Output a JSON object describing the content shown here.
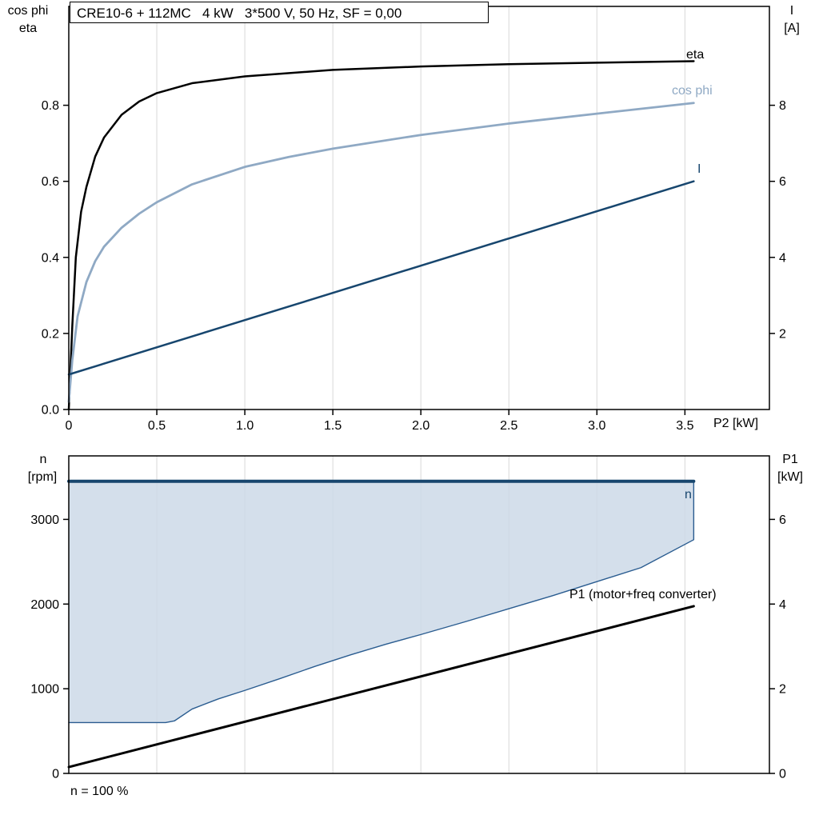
{
  "title": "CRE10-6 + 112MC   4 kW   3*500 V, 50 Hz, SF = 0,00",
  "colors": {
    "grid": "#d8d8d8",
    "frame": "#000000",
    "eta": "#000000",
    "cos_phi": "#8fa9c4",
    "current": "#17466e",
    "area_fill": "#cdd9e8",
    "p1": "#000000"
  },
  "labels": {
    "top_left_1": "cos phi",
    "top_left_2": "eta",
    "top_right_1": "I",
    "top_right_2": "[A]",
    "x_axis": "P2 [kW]",
    "bottom_left_1": "n",
    "bottom_left_2": "[rpm]",
    "bottom_right_1": "P1",
    "bottom_right_2": "[kW]",
    "note": "n = 100 %",
    "curve_eta": "eta",
    "curve_cos_phi": "cos phi",
    "curve_current": "I",
    "curve_speed": "n",
    "curve_p1": "P1 (motor+freq converter)"
  },
  "chart_data": [
    {
      "id": "top",
      "type": "line",
      "title": "CRE10-6 + 112MC   4 kW   3*500 V, 50 Hz, SF = 0,00",
      "xlabel": "P2 [kW]",
      "ylabel_left": "cos phi, eta",
      "ylabel_right": "I [A]",
      "xlim": [
        0,
        3.98
      ],
      "ylim_left": [
        0,
        1.06
      ],
      "ylim_right": [
        0,
        10.6
      ],
      "grid": "vertical-only",
      "x_grid": [
        0.5,
        1,
        1.5,
        2,
        2.5,
        3,
        3.5
      ],
      "x_ticks": [
        {
          "v": 0,
          "label": "0"
        },
        {
          "v": 0.5,
          "label": "0.5"
        },
        {
          "v": 1,
          "label": "1.0"
        },
        {
          "v": 1.5,
          "label": "1.5"
        },
        {
          "v": 2,
          "label": "2.0"
        },
        {
          "v": 2.5,
          "label": "2.5"
        },
        {
          "v": 3,
          "label": "3.0"
        },
        {
          "v": 3.5,
          "label": "3.5"
        }
      ],
      "y_left_ticks": [
        {
          "v": 0,
          "label": "0.0"
        },
        {
          "v": 0.2,
          "label": "0.2"
        },
        {
          "v": 0.4,
          "label": "0.4"
        },
        {
          "v": 0.6,
          "label": "0.6"
        },
        {
          "v": 0.8,
          "label": "0.8"
        }
      ],
      "y_right_ticks": [
        {
          "v": 2,
          "label": "2"
        },
        {
          "v": 4,
          "label": "4"
        },
        {
          "v": 6,
          "label": "6"
        },
        {
          "v": 8,
          "label": "8"
        }
      ],
      "series": [
        {
          "name": "eta",
          "axis": "left",
          "color": "#000000",
          "width": 2.5,
          "x": [
            0,
            0.02,
            0.04,
            0.07,
            0.1,
            0.15,
            0.2,
            0.3,
            0.4,
            0.5,
            0.7,
            1.0,
            1.5,
            2.0,
            2.5,
            3.0,
            3.55
          ],
          "y": [
            0,
            0.22,
            0.4,
            0.52,
            0.585,
            0.665,
            0.715,
            0.775,
            0.81,
            0.832,
            0.858,
            0.876,
            0.893,
            0.902,
            0.908,
            0.912,
            0.916
          ]
        },
        {
          "name": "cos phi",
          "axis": "left",
          "color": "#8fa9c4",
          "width": 2.8,
          "x": [
            0,
            0.02,
            0.05,
            0.1,
            0.15,
            0.2,
            0.3,
            0.4,
            0.5,
            0.7,
            1.0,
            1.25,
            1.5,
            2.0,
            2.5,
            3.0,
            3.55
          ],
          "y": [
            0.02,
            0.13,
            0.245,
            0.335,
            0.39,
            0.428,
            0.478,
            0.515,
            0.545,
            0.592,
            0.638,
            0.664,
            0.686,
            0.722,
            0.752,
            0.778,
            0.806
          ]
        },
        {
          "name": "I",
          "axis": "right",
          "color": "#17466e",
          "width": 2.5,
          "x": [
            0,
            3.55
          ],
          "y": [
            0.92,
            6.0
          ]
        }
      ]
    },
    {
      "id": "bottom",
      "type": "line",
      "title": "",
      "xlabel": "",
      "ylabel_left": "n [rpm]",
      "ylabel_right": "P1 [kW]",
      "xlim": [
        0,
        3.98
      ],
      "ylim_left": [
        0,
        3750
      ],
      "ylim_right": [
        0,
        7.5
      ],
      "grid": "vertical-only",
      "x_grid": [
        0.5,
        1,
        1.5,
        2,
        2.5,
        3,
        3.5
      ],
      "x_ticks": [],
      "y_left_ticks": [
        {
          "v": 0,
          "label": "0"
        },
        {
          "v": 1000,
          "label": "1000"
        },
        {
          "v": 2000,
          "label": "2000"
        },
        {
          "v": 3000,
          "label": "3000"
        }
      ],
      "y_right_ticks": [
        {
          "v": 0,
          "label": "0"
        },
        {
          "v": 2,
          "label": "2"
        },
        {
          "v": 4,
          "label": "4"
        },
        {
          "v": 6,
          "label": "6"
        }
      ],
      "area": {
        "name": "speed-operating-range",
        "fill": "#cdd9e8",
        "opacity": 0.85,
        "top_value": 3450,
        "lower_x": [
          0,
          0.55,
          0.6,
          0.7,
          0.85,
          1.0,
          1.2,
          1.4,
          1.6,
          1.8,
          2.0,
          2.25,
          2.5,
          2.75,
          3.0,
          3.25,
          3.55
        ],
        "lower_y": [
          600,
          600,
          620,
          760,
          880,
          980,
          1120,
          1265,
          1400,
          1525,
          1640,
          1790,
          1945,
          2100,
          2265,
          2430,
          2760
        ]
      },
      "series": [
        {
          "name": "n-min-boundary",
          "axis": "left",
          "color": "#2a5c90",
          "width": 1.4,
          "x": [
            0,
            0.55,
            0.6,
            0.7,
            0.85,
            1.0,
            1.2,
            1.4,
            1.6,
            1.8,
            2.0,
            2.25,
            2.5,
            2.75,
            3.0,
            3.25,
            3.55,
            3.55
          ],
          "y": [
            600,
            600,
            620,
            760,
            880,
            980,
            1120,
            1265,
            1400,
            1525,
            1640,
            1790,
            1945,
            2100,
            2265,
            2430,
            2760,
            3450
          ]
        },
        {
          "name": "n",
          "axis": "left",
          "color": "#17466e",
          "width": 4,
          "x": [
            0,
            3.55
          ],
          "y": [
            3450,
            3450
          ]
        },
        {
          "name": "P1",
          "axis": "right",
          "color": "#000000",
          "width": 3,
          "x": [
            0,
            3.55
          ],
          "y": [
            0.15,
            3.95
          ]
        }
      ]
    }
  ]
}
